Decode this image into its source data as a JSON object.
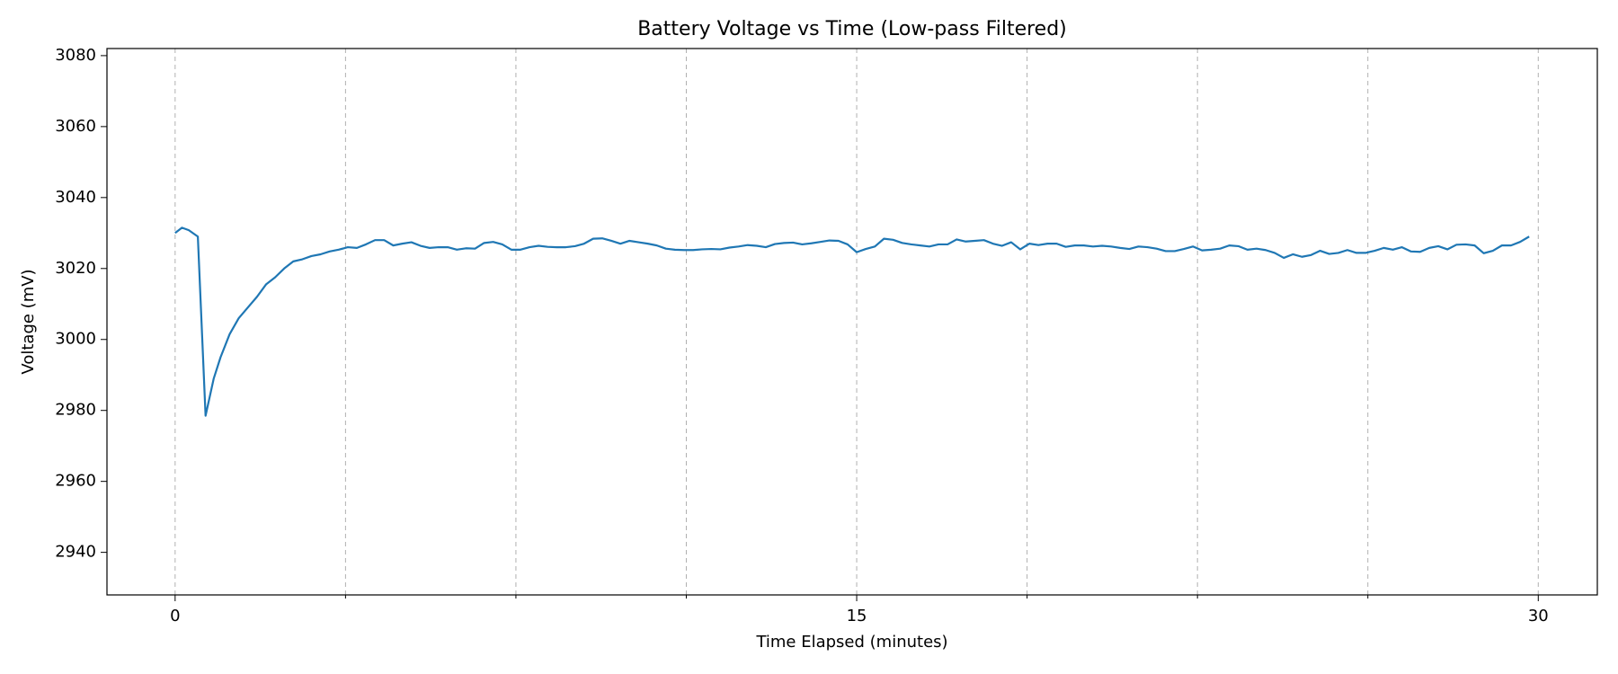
{
  "chart_data": {
    "type": "line",
    "title": "Battery Voltage vs Time (Low-pass Filtered)",
    "xlabel": "Time Elapsed (minutes)",
    "ylabel": "Voltage (mV)",
    "color": "#1f77b4",
    "xlim": [
      -1.5,
      31.3
    ],
    "ylim": [
      2928,
      3082
    ],
    "xticks": [
      0,
      15,
      30
    ],
    "xminorticks": [
      3.75,
      7.5,
      11.25,
      18.75,
      22.5,
      26.25
    ],
    "yticks": [
      2940,
      2960,
      2980,
      3000,
      3020,
      3040,
      3060,
      3080
    ],
    "xgrid": true,
    "x": [
      0,
      0.15,
      0.3,
      0.5,
      0.67,
      0.85,
      1.0,
      1.2,
      1.4,
      1.6,
      1.8,
      2.0,
      2.2,
      2.4,
      2.6,
      2.8,
      3.0,
      3.2,
      3.4,
      3.6,
      3.8,
      4.0,
      4.2,
      4.4,
      4.6,
      4.8,
      5.0,
      5.2,
      5.4,
      5.6,
      5.8,
      6.0,
      6.2,
      6.4,
      6.6,
      6.8,
      7.0,
      7.2,
      7.4,
      7.6,
      7.8,
      8.0,
      8.2,
      8.4,
      8.6,
      8.8,
      9.0,
      9.2,
      9.4,
      9.6,
      9.8,
      10.0,
      10.2,
      10.4,
      10.6,
      10.8,
      11.0,
      11.2,
      11.4,
      11.6,
      11.8,
      12.0,
      12.2,
      12.4,
      12.6,
      12.8,
      13.0,
      13.2,
      13.4,
      13.6,
      13.8,
      14.0,
      14.2,
      14.4,
      14.6,
      14.8,
      15.0,
      15.2,
      15.4,
      15.6,
      15.8,
      16.0,
      16.2,
      16.4,
      16.6,
      16.8,
      17.0,
      17.2,
      17.4,
      17.6,
      17.8,
      18.0,
      18.2,
      18.4,
      18.6,
      18.8,
      19.0,
      19.2,
      19.4,
      19.6,
      19.8,
      20.0,
      20.2,
      20.4,
      20.6,
      20.8,
      21.0,
      21.2,
      21.4,
      21.6,
      21.8,
      22.0,
      22.2,
      22.4,
      22.6,
      22.8,
      23.0,
      23.2,
      23.4,
      23.6,
      23.8,
      24.0,
      24.2,
      24.4,
      24.6,
      24.8,
      25.0,
      25.2,
      25.4,
      25.6,
      25.8,
      26.0,
      26.2,
      26.4,
      26.6,
      26.8,
      27.0,
      27.2,
      27.4,
      27.6,
      27.8,
      28.0,
      28.2,
      28.4,
      28.6,
      28.8,
      29.0,
      29.2,
      29.4,
      29.6,
      29.8
    ],
    "values": [
      3030,
      3031.5,
      3030.8,
      3029,
      2978.5,
      2989,
      2995,
      3001.5,
      3006,
      3009,
      3012,
      3015.5,
      3017.5,
      3020,
      3022,
      3022.6,
      3023.5,
      3024,
      3024.8,
      3025.3,
      3026,
      3025.8,
      3026.8,
      3028,
      3028,
      3026.5,
      3027,
      3027.4,
      3026.4,
      3025.8,
      3026,
      3026,
      3025.3,
      3025.7,
      3025.6,
      3027.2,
      3027.5,
      3026.8,
      3025.3,
      3025.3,
      3026,
      3026.4,
      3026.1,
      3026,
      3026,
      3026.3,
      3027,
      3028.4,
      3028.5,
      3027.8,
      3027,
      3027.8,
      3027.4,
      3027,
      3026.5,
      3025.6,
      3025.3,
      3025.2,
      3025.2,
      3025.4,
      3025.5,
      3025.4,
      3025.9,
      3026.2,
      3026.6,
      3026.4,
      3026,
      3026.9,
      3027.2,
      3027.3,
      3026.8,
      3027.1,
      3027.5,
      3027.9,
      3027.8,
      3026.8,
      3024.6,
      3025.5,
      3026.2,
      3028.4,
      3028.1,
      3027.2,
      3026.8,
      3026.5,
      3026.2,
      3026.8,
      3026.8,
      3028.2,
      3027.6,
      3027.8,
      3028,
      3027,
      3026.4,
      3027.4,
      3025.4,
      3027,
      3026.6,
      3027,
      3027,
      3026.1,
      3026.5,
      3026.5,
      3026.2,
      3026.4,
      3026.2,
      3025.8,
      3025.5,
      3026.2,
      3026,
      3025.6,
      3024.9,
      3024.9,
      3025.5,
      3026.2,
      3025.1,
      3025.3,
      3025.6,
      3026.5,
      3026.3,
      3025.3,
      3025.6,
      3025.2,
      3024.4,
      3023,
      3024,
      3023.3,
      3023.8,
      3025,
      3024.1,
      3024.4,
      3025.2,
      3024.4,
      3024.4,
      3025,
      3025.8,
      3025.3,
      3026,
      3024.8,
      3024.7,
      3025.8,
      3026.3,
      3025.4,
      3026.7,
      3026.8,
      3026.5,
      3024.3,
      3025,
      3026.5,
      3026.5,
      3027.5,
      3029
    ]
  }
}
